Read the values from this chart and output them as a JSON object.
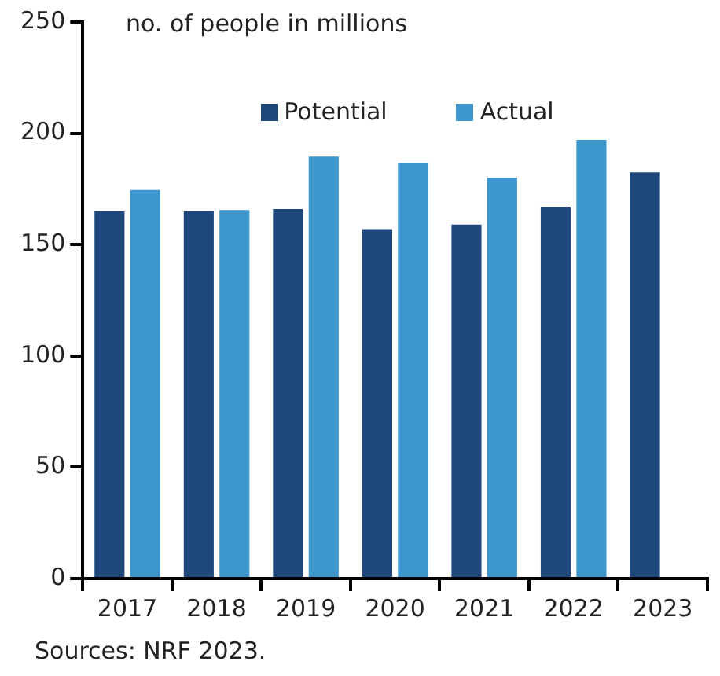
{
  "chart_data": {
    "type": "bar",
    "subtitle": "no. of people in millions",
    "categories": [
      "2017",
      "2018",
      "2019",
      "2020",
      "2021",
      "2022",
      "2023"
    ],
    "series": [
      {
        "name": "Potential",
        "color": "#1f497d",
        "values": [
          165,
          165,
          166,
          157,
          159,
          167,
          182.5
        ]
      },
      {
        "name": "Actual",
        "color": "#3d97cc",
        "values": [
          174.5,
          165.5,
          189.5,
          186.5,
          180,
          197,
          null
        ]
      }
    ],
    "ylim": [
      0,
      250
    ],
    "yticks": [
      0,
      50,
      100,
      150,
      200,
      250
    ],
    "grid": false,
    "legend": "top",
    "annotations": [
      "Sources: NRF 2023."
    ]
  }
}
